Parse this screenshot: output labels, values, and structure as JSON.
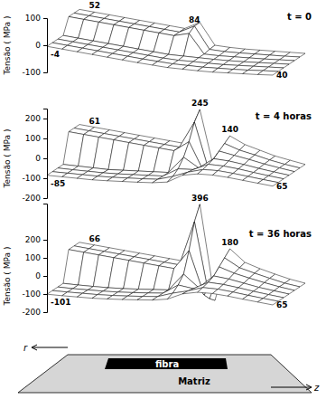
{
  "chart_data": [
    {
      "type": "surface",
      "title": "t = 0",
      "ylabel": "Tensão ( MPa )",
      "x": [
        0,
        1,
        2,
        3,
        4,
        5,
        6,
        7,
        8,
        9,
        10,
        11,
        12,
        13,
        14,
        15
      ],
      "xlim": [
        0,
        15
      ],
      "ylim": [
        -100,
        100
      ],
      "yticks": [
        -100,
        0,
        100
      ],
      "tick_labels": "y",
      "color": "#ffffff",
      "series": [
        {
          "values": [
            52,
            52,
            52,
            52,
            52,
            52,
            52,
            52,
            84,
            10,
            12,
            16,
            22,
            28,
            34,
            40
          ]
        },
        {
          "values": [
            52,
            52,
            52,
            52,
            52,
            52,
            52,
            52,
            84,
            8,
            10,
            15,
            21,
            27,
            33,
            40
          ]
        },
        {
          "values": [
            52,
            52,
            52,
            52,
            52,
            52,
            52,
            52,
            70,
            4,
            8,
            14,
            20,
            26,
            33,
            40
          ]
        },
        {
          "values": [
            -4,
            -4,
            -4,
            -4,
            -4,
            -4,
            -4,
            -4,
            0,
            4,
            8,
            13,
            19,
            26,
            33,
            40
          ]
        },
        {
          "values": [
            -4,
            -4,
            -4,
            -4,
            -4,
            -4,
            -4,
            -4,
            -2,
            3,
            7,
            12,
            19,
            26,
            33,
            40
          ]
        },
        {
          "values": [
            -4,
            -4,
            -4,
            -4,
            -4,
            -4,
            -4,
            -3,
            -2,
            2,
            6,
            12,
            18,
            25,
            33,
            40
          ]
        },
        {
          "values": [
            -4,
            -4,
            -4,
            -4,
            -4,
            -4,
            -4,
            -3,
            -2,
            2,
            6,
            11,
            18,
            25,
            32,
            40
          ]
        }
      ],
      "annotations": [
        {
          "value": -4,
          "series": 6,
          "x": 0
        },
        {
          "value": 52,
          "series": 0,
          "x": 1
        },
        {
          "value": 84,
          "series": 1,
          "x": 8
        },
        {
          "value": 40,
          "series": 6,
          "x": 15
        }
      ]
    },
    {
      "type": "surface",
      "title": "t = 4 horas",
      "ylabel": "Tensão ( MPa )",
      "x": [
        0,
        1,
        2,
        3,
        4,
        5,
        6,
        7,
        8,
        9,
        10,
        11,
        12,
        13,
        14,
        15
      ],
      "xlim": [
        0,
        15
      ],
      "ylim": [
        -200,
        250
      ],
      "yticks": [
        -200,
        -100,
        0,
        100,
        200
      ],
      "tick_labels": "y",
      "color": "#ffffff",
      "series": [
        {
          "values": [
            61,
            61,
            61,
            61,
            61,
            61,
            61,
            61,
            245,
            -60,
            140,
            110,
            95,
            80,
            72,
            65
          ]
        },
        {
          "values": [
            61,
            61,
            61,
            61,
            61,
            61,
            61,
            61,
            200,
            -40,
            120,
            100,
            90,
            78,
            70,
            65
          ]
        },
        {
          "values": [
            61,
            61,
            61,
            61,
            61,
            61,
            61,
            61,
            120,
            -20,
            100,
            92,
            85,
            76,
            70,
            65
          ]
        },
        {
          "values": [
            -85,
            -80,
            -75,
            -70,
            -60,
            -50,
            -40,
            -30,
            60,
            20,
            80,
            82,
            78,
            72,
            68,
            65
          ]
        },
        {
          "values": [
            -85,
            -80,
            -74,
            -68,
            -60,
            -50,
            -40,
            -30,
            20,
            30,
            70,
            75,
            74,
            70,
            67,
            65
          ]
        },
        {
          "values": [
            -85,
            -79,
            -73,
            -67,
            -59,
            -49,
            -39,
            -28,
            0,
            35,
            62,
            70,
            70,
            68,
            66,
            65
          ]
        },
        {
          "values": [
            -85,
            -79,
            -73,
            -67,
            -58,
            -48,
            -38,
            -27,
            -10,
            38,
            58,
            66,
            68,
            67,
            66,
            65
          ]
        }
      ],
      "annotations": [
        {
          "value": 61,
          "series": 0,
          "x": 1
        },
        {
          "value": -85,
          "series": 6,
          "x": 0
        },
        {
          "value": 245,
          "series": 0,
          "x": 8
        },
        {
          "value": 140,
          "series": 0,
          "x": 10
        },
        {
          "value": 65,
          "series": 6,
          "x": 15
        }
      ]
    },
    {
      "type": "surface",
      "title": "t = 36 horas",
      "ylabel": "Tensão ( MPa )",
      "x": [
        0,
        1,
        2,
        3,
        4,
        5,
        6,
        7,
        8,
        9,
        10,
        11,
        12,
        13,
        14,
        15
      ],
      "xlim": [
        0,
        15
      ],
      "ylim": [
        -200,
        400
      ],
      "yticks": [
        -200,
        -100,
        0,
        100,
        200
      ],
      "tick_labels": "y",
      "color": "#ffffff",
      "series": [
        {
          "values": [
            66,
            66,
            66,
            66,
            66,
            66,
            66,
            66,
            396,
            -120,
            180,
            120,
            100,
            85,
            72,
            65
          ]
        },
        {
          "values": [
            66,
            66,
            66,
            66,
            66,
            66,
            66,
            66,
            320,
            -90,
            150,
            110,
            95,
            82,
            70,
            65
          ]
        },
        {
          "values": [
            66,
            66,
            66,
            66,
            66,
            66,
            66,
            66,
            180,
            -50,
            120,
            100,
            88,
            78,
            70,
            65
          ]
        },
        {
          "values": [
            -101,
            -95,
            -88,
            -80,
            -70,
            -58,
            -45,
            -32,
            70,
            10,
            90,
            88,
            80,
            72,
            68,
            65
          ]
        },
        {
          "values": [
            -101,
            -95,
            -87,
            -79,
            -69,
            -57,
            -44,
            -30,
            30,
            25,
            75,
            78,
            75,
            70,
            67,
            65
          ]
        },
        {
          "values": [
            -101,
            -94,
            -86,
            -78,
            -68,
            -56,
            -43,
            -29,
            5,
            32,
            66,
            72,
            71,
            68,
            66,
            65
          ]
        },
        {
          "values": [
            -101,
            -94,
            -86,
            -78,
            -67,
            -55,
            -42,
            -28,
            -8,
            36,
            60,
            68,
            69,
            67,
            66,
            65
          ]
        }
      ],
      "annotations": [
        {
          "value": 66,
          "series": 0,
          "x": 1
        },
        {
          "value": -101,
          "series": 6,
          "x": 0
        },
        {
          "value": 396,
          "series": 0,
          "x": 8
        },
        {
          "value": 180,
          "series": 0,
          "x": 10
        },
        {
          "value": 65,
          "series": 6,
          "x": 15
        }
      ]
    }
  ],
  "diagram": {
    "fiber_label": "fibra",
    "matrix_label": "Matriz",
    "r_label": "r",
    "z_label": "z"
  }
}
